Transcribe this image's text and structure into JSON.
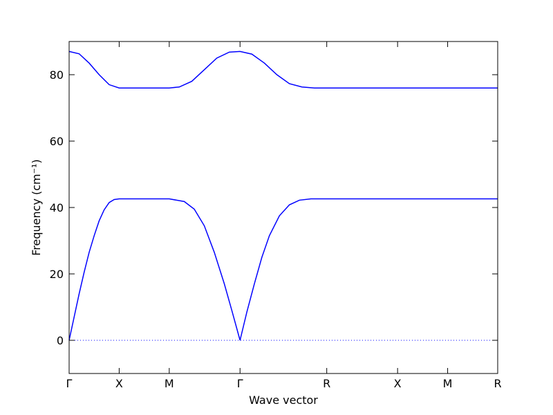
{
  "chart_data": {
    "type": "line",
    "xlabel": "Wave vector",
    "ylabel": "Frequency (cm⁻¹)",
    "xlim": [
      0,
      8.561
    ],
    "ylim": [
      -10,
      90
    ],
    "xticks": [
      {
        "value": 0,
        "label": "Γ"
      },
      {
        "value": 1,
        "label": "X"
      },
      {
        "value": 2,
        "label": "M"
      },
      {
        "value": 3.414,
        "label": "Γ"
      },
      {
        "value": 5.146,
        "label": "R"
      },
      {
        "value": 6.561,
        "label": "X"
      },
      {
        "value": 7.561,
        "label": "M"
      },
      {
        "value": 8.561,
        "label": "R"
      }
    ],
    "yticks": [
      0,
      20,
      40,
      60,
      80
    ],
    "hline": 0,
    "series": [
      {
        "color": "#0000ff",
        "x": [
          0,
          0.1,
          0.2,
          0.3,
          0.4,
          0.5,
          0.6,
          0.7,
          0.8,
          0.9,
          1,
          2,
          2.3,
          2.5,
          2.7,
          2.9,
          3.1,
          3.25,
          3.414,
          3.55,
          3.7,
          3.85,
          4.0,
          4.2,
          4.4,
          4.6,
          4.83,
          5.146,
          6.561,
          7.561,
          8.561
        ],
        "values": [
          0,
          7,
          14,
          20.5,
          26.5,
          31.5,
          36,
          39.3,
          41.5,
          42.4,
          42.6,
          42.6,
          41.8,
          39.5,
          34.5,
          26.5,
          17,
          9,
          0,
          8.5,
          17,
          25,
          31.5,
          37.5,
          40.8,
          42.2,
          42.6,
          42.6,
          42.6,
          42.6,
          42.6
        ]
      },
      {
        "color": "#0000ff",
        "x": [
          0,
          0.2,
          0.4,
          0.6,
          0.8,
          1,
          2,
          2.2,
          2.45,
          2.7,
          2.95,
          3.2,
          3.414,
          3.65,
          3.9,
          4.15,
          4.4,
          4.65,
          4.9,
          5.146,
          6.561,
          7.561,
          8.561
        ],
        "values": [
          87,
          86.3,
          83.5,
          80,
          77,
          76,
          76,
          76.3,
          78,
          81.5,
          85,
          86.8,
          87,
          86.2,
          83.5,
          80,
          77.3,
          76.3,
          76,
          76,
          76,
          76,
          76
        ]
      }
    ]
  }
}
